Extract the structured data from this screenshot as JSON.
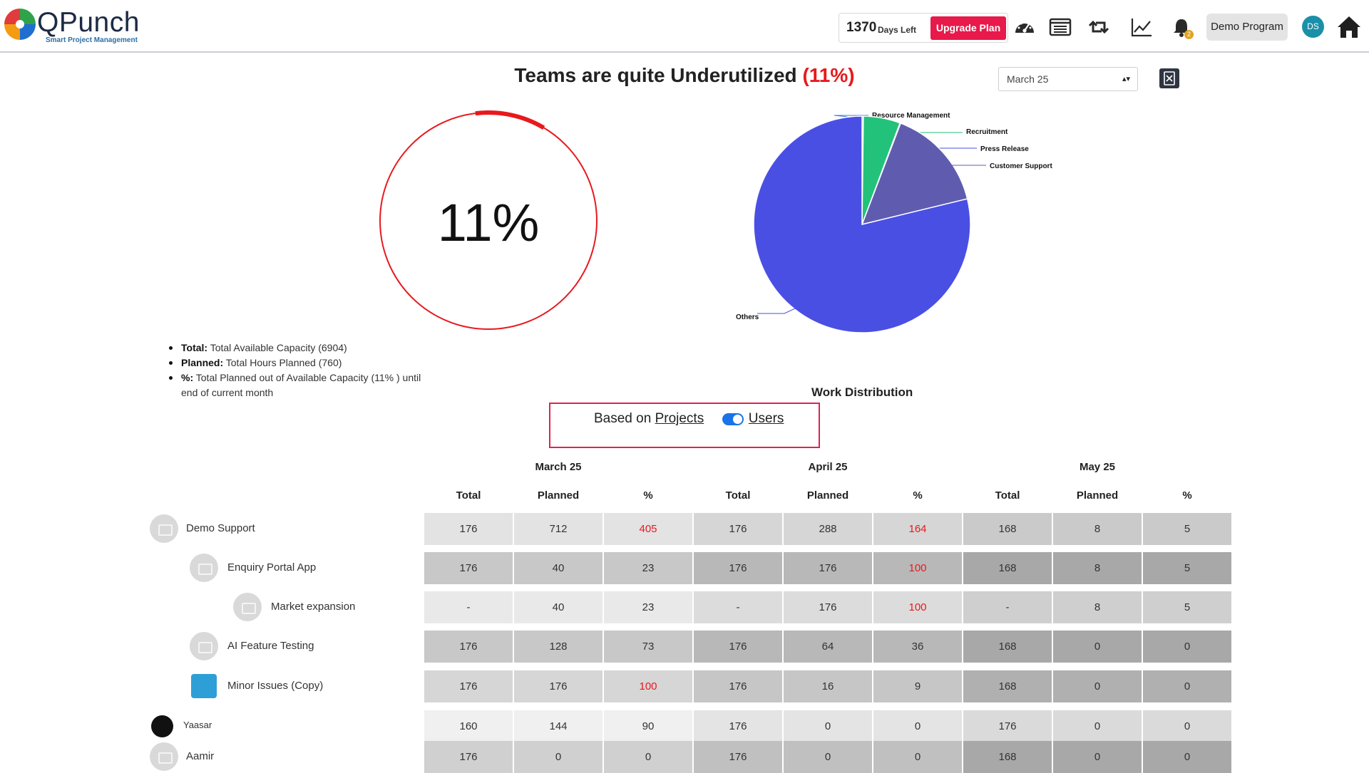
{
  "header": {
    "brand": "QPunch",
    "tagline": "Smart Project Management",
    "days_left_number": "1370",
    "days_left_label": "Days Left",
    "upgrade_label": "Upgrade Plan",
    "program_label": "Demo Program",
    "avatar_initials": "DS",
    "notification_count": "2",
    "icons": [
      "dashboard-icon",
      "list-icon",
      "retweet-icon",
      "chart-line-icon",
      "bell-icon",
      "home-icon"
    ]
  },
  "title": {
    "text": "Teams are quite Underutilized",
    "pct": "(11%)"
  },
  "month_select": {
    "value": "March 25"
  },
  "gauge": {
    "label": "11%",
    "value_pct": 11
  },
  "legend": [
    {
      "key": "Total:",
      "text": "Total Available Capacity (6904)"
    },
    {
      "key": "Planned:",
      "text": "Total Hours Planned (760)"
    },
    {
      "key": "%:",
      "text": "Total Planned out of Available Capacity (11% ) until end of current month"
    }
  ],
  "chart_data": {
    "type": "pie",
    "title": "Work Distribution",
    "labels": [
      "Resource Management",
      "Recruitment",
      "Press Release",
      "Customer Support",
      "Others"
    ],
    "values": [
      0.2,
      5.5,
      0.1,
      15.4,
      78.8
    ],
    "colors": [
      "#3d7be6",
      "#22c27a",
      "#4b4fe0",
      "#5f5cb0",
      "#4a4fe4"
    ]
  },
  "toggle": {
    "prefix": "Based on",
    "left_option": "Projects",
    "right_option": "Users",
    "state": "Users"
  },
  "table": {
    "months": [
      "March 25",
      "April 25",
      "May 25"
    ],
    "columns": [
      "Total",
      "Planned",
      "%"
    ],
    "rows": [
      {
        "name": "Demo Support",
        "indent": 0,
        "values": [
          "176",
          "712",
          "405",
          "176",
          "288",
          "164",
          "168",
          "8",
          "5"
        ],
        "red": [
          2,
          5
        ]
      },
      {
        "name": "Enquiry Portal App",
        "indent": 1,
        "values": [
          "176",
          "40",
          "23",
          "176",
          "176",
          "100",
          "168",
          "8",
          "5"
        ],
        "red": [
          5
        ]
      },
      {
        "name": "Market expansion",
        "indent": 2,
        "values": [
          "-",
          "40",
          "23",
          "-",
          "176",
          "100",
          "-",
          "8",
          "5"
        ],
        "red": [
          5
        ]
      },
      {
        "name": "AI Feature Testing",
        "indent": 1,
        "values": [
          "176",
          "128",
          "73",
          "176",
          "64",
          "36",
          "168",
          "0",
          "0"
        ],
        "red": []
      },
      {
        "name": "Minor Issues (Copy)",
        "indent": 1,
        "values": [
          "176",
          "176",
          "100",
          "176",
          "16",
          "9",
          "168",
          "0",
          "0"
        ],
        "red": [
          2
        ]
      },
      {
        "name": "Yaasar",
        "indent": 0,
        "values": [
          "160",
          "144",
          "90",
          "176",
          "0",
          "0",
          "176",
          "0",
          "0"
        ],
        "red": []
      },
      {
        "name": "Aamir",
        "indent": 0,
        "values": [
          "176",
          "0",
          "0",
          "176",
          "0",
          "0",
          "168",
          "0",
          "0"
        ],
        "red": []
      }
    ]
  }
}
